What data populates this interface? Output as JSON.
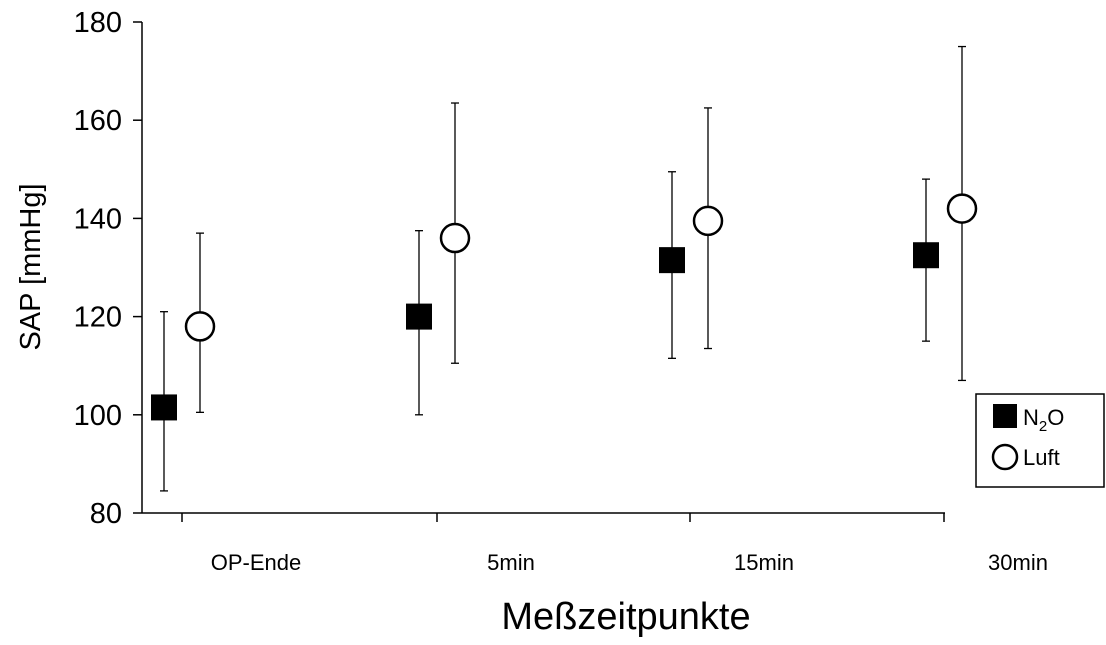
{
  "chart_data": {
    "type": "scatter",
    "title": "",
    "xlabel": "Meßzeitpunkte",
    "ylabel": "SAP [mmHg]",
    "ylim": [
      80,
      180
    ],
    "yticks": [
      "80",
      "100",
      "120",
      "140",
      "160",
      "180"
    ],
    "categories": [
      "OP-Ende",
      "5min",
      "15min",
      "30min"
    ],
    "legend_position": "right",
    "grid": false,
    "series": [
      {
        "name": "N2O",
        "legend_main": "N",
        "legend_sub": "2",
        "legend_tail": "O",
        "marker": "filled-square",
        "color": "#000000",
        "values": [
          101.5,
          120,
          131.5,
          132.5
        ],
        "upper": [
          121,
          137.5,
          149.5,
          148
        ],
        "lower": [
          84.5,
          100,
          111.5,
          115
        ]
      },
      {
        "name": "Luft",
        "legend_main": "Luft",
        "marker": "open-circle",
        "color": "#000000",
        "values": [
          118,
          136,
          139.5,
          142
        ],
        "upper": [
          137,
          163.5,
          162.5,
          175
        ],
        "lower": [
          100.5,
          110.5,
          113.5,
          107
        ]
      }
    ]
  }
}
